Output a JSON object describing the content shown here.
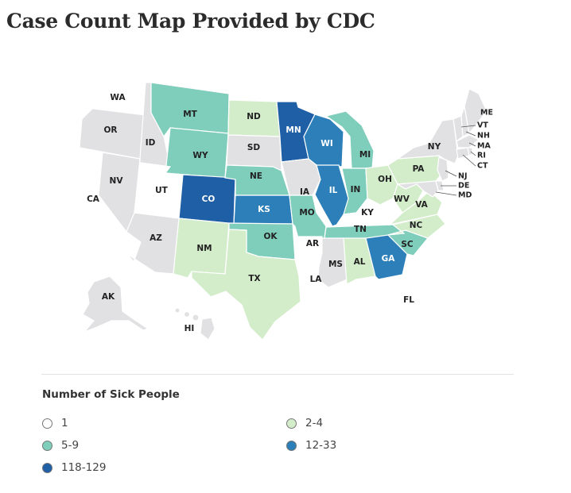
{
  "title": "Case Count Map Provided by CDC",
  "legend": {
    "title": "Number of Sick People",
    "items": [
      {
        "label": "1",
        "color": "#ffffff"
      },
      {
        "label": "2-4",
        "color": "#d3edcb"
      },
      {
        "label": "5-9",
        "color": "#7fcdbb"
      },
      {
        "label": "12-33",
        "color": "#2c7fb8"
      },
      {
        "label": "118-129",
        "color": "#1f5fa6"
      }
    ]
  },
  "colors": {
    "none": "#e1e1e3",
    "one": "#ffffff",
    "two_four": "#d3edcb",
    "five_nine": "#7fcdbb",
    "twelve_33": "#2c7fb8",
    "top": "#1f5fa6"
  },
  "states": [
    {
      "abbr": "WA",
      "category": "one"
    },
    {
      "abbr": "OR",
      "category": "none"
    },
    {
      "abbr": "CA",
      "category": "one"
    },
    {
      "abbr": "NV",
      "category": "none"
    },
    {
      "abbr": "ID",
      "category": "none"
    },
    {
      "abbr": "MT",
      "category": "five_nine"
    },
    {
      "abbr": "WY",
      "category": "five_nine"
    },
    {
      "abbr": "UT",
      "category": "one"
    },
    {
      "abbr": "AZ",
      "category": "none"
    },
    {
      "abbr": "CO",
      "category": "top"
    },
    {
      "abbr": "NM",
      "category": "two_four"
    },
    {
      "abbr": "ND",
      "category": "two_four"
    },
    {
      "abbr": "SD",
      "category": "none"
    },
    {
      "abbr": "NE",
      "category": "five_nine"
    },
    {
      "abbr": "KS",
      "category": "twelve_33"
    },
    {
      "abbr": "OK",
      "category": "five_nine"
    },
    {
      "abbr": "TX",
      "category": "two_four"
    },
    {
      "abbr": "MN",
      "category": "top"
    },
    {
      "abbr": "IA",
      "category": "none"
    },
    {
      "abbr": "MO",
      "category": "five_nine"
    },
    {
      "abbr": "AR",
      "category": "one"
    },
    {
      "abbr": "LA",
      "category": "one"
    },
    {
      "abbr": "WI",
      "category": "twelve_33"
    },
    {
      "abbr": "IL",
      "category": "twelve_33"
    },
    {
      "abbr": "MI",
      "category": "five_nine"
    },
    {
      "abbr": "IN",
      "category": "five_nine"
    },
    {
      "abbr": "OH",
      "category": "two_four"
    },
    {
      "abbr": "KY",
      "category": "one"
    },
    {
      "abbr": "TN",
      "category": "five_nine"
    },
    {
      "abbr": "MS",
      "category": "none"
    },
    {
      "abbr": "AL",
      "category": "two_four"
    },
    {
      "abbr": "GA",
      "category": "twelve_33"
    },
    {
      "abbr": "FL",
      "category": "one"
    },
    {
      "abbr": "SC",
      "category": "five_nine"
    },
    {
      "abbr": "NC",
      "category": "two_four"
    },
    {
      "abbr": "VA",
      "category": "two_four"
    },
    {
      "abbr": "WV",
      "category": "two_four"
    },
    {
      "abbr": "PA",
      "category": "two_four"
    },
    {
      "abbr": "NY",
      "category": "none"
    },
    {
      "abbr": "ME",
      "category": "none"
    },
    {
      "abbr": "VT",
      "category": "none"
    },
    {
      "abbr": "NH",
      "category": "none"
    },
    {
      "abbr": "MA",
      "category": "none"
    },
    {
      "abbr": "RI",
      "category": "none"
    },
    {
      "abbr": "CT",
      "category": "none"
    },
    {
      "abbr": "NJ",
      "category": "none"
    },
    {
      "abbr": "DE",
      "category": "none"
    },
    {
      "abbr": "MD",
      "category": "none"
    },
    {
      "abbr": "AK",
      "category": "none"
    },
    {
      "abbr": "HI",
      "category": "none"
    }
  ]
}
